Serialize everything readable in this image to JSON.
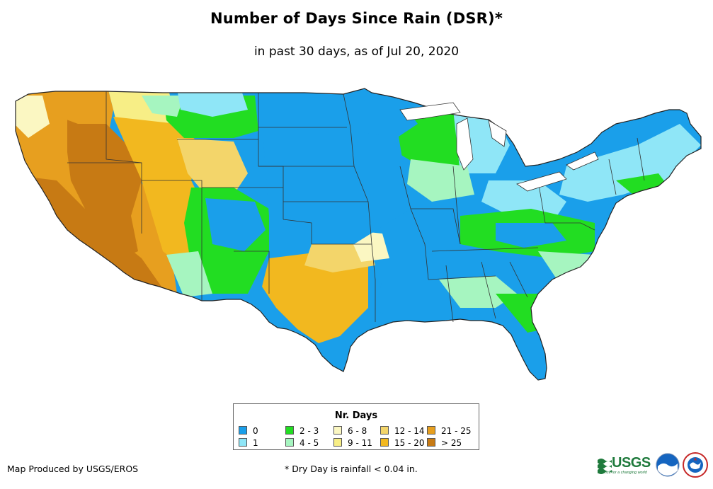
{
  "header": {
    "title": "Number of Days Since Rain (DSR)*",
    "subtitle": "in past 30 days, as of Jul 20, 2020"
  },
  "legend": {
    "title": "Nr. Days",
    "items": [
      {
        "label": "0",
        "color": "#1a9fea"
      },
      {
        "label": "1",
        "color": "#8fe6f7"
      },
      {
        "label": "2 - 3",
        "color": "#22dd22"
      },
      {
        "label": "4 - 5",
        "color": "#a6f5c0"
      },
      {
        "label": "6 - 8",
        "color": "#fbf7c2"
      },
      {
        "label": "9 - 11",
        "color": "#f7ee86"
      },
      {
        "label": "12 - 14",
        "color": "#f3d56a"
      },
      {
        "label": "15 - 20",
        "color": "#f2b81f"
      },
      {
        "label": "21 - 25",
        "color": "#e79f1f"
      },
      {
        "label": "> 25",
        "color": "#c77a14"
      }
    ]
  },
  "footer": {
    "credit": "Map Produced by USGS/EROS",
    "footnote": "* Dry Day is rainfall < 0.04 in.",
    "usgs_logo_text": "USGS",
    "usgs_tagline": "science for a changing world",
    "logos": [
      "usgs-logo",
      "noaa-logo",
      "nws-logo"
    ]
  }
}
